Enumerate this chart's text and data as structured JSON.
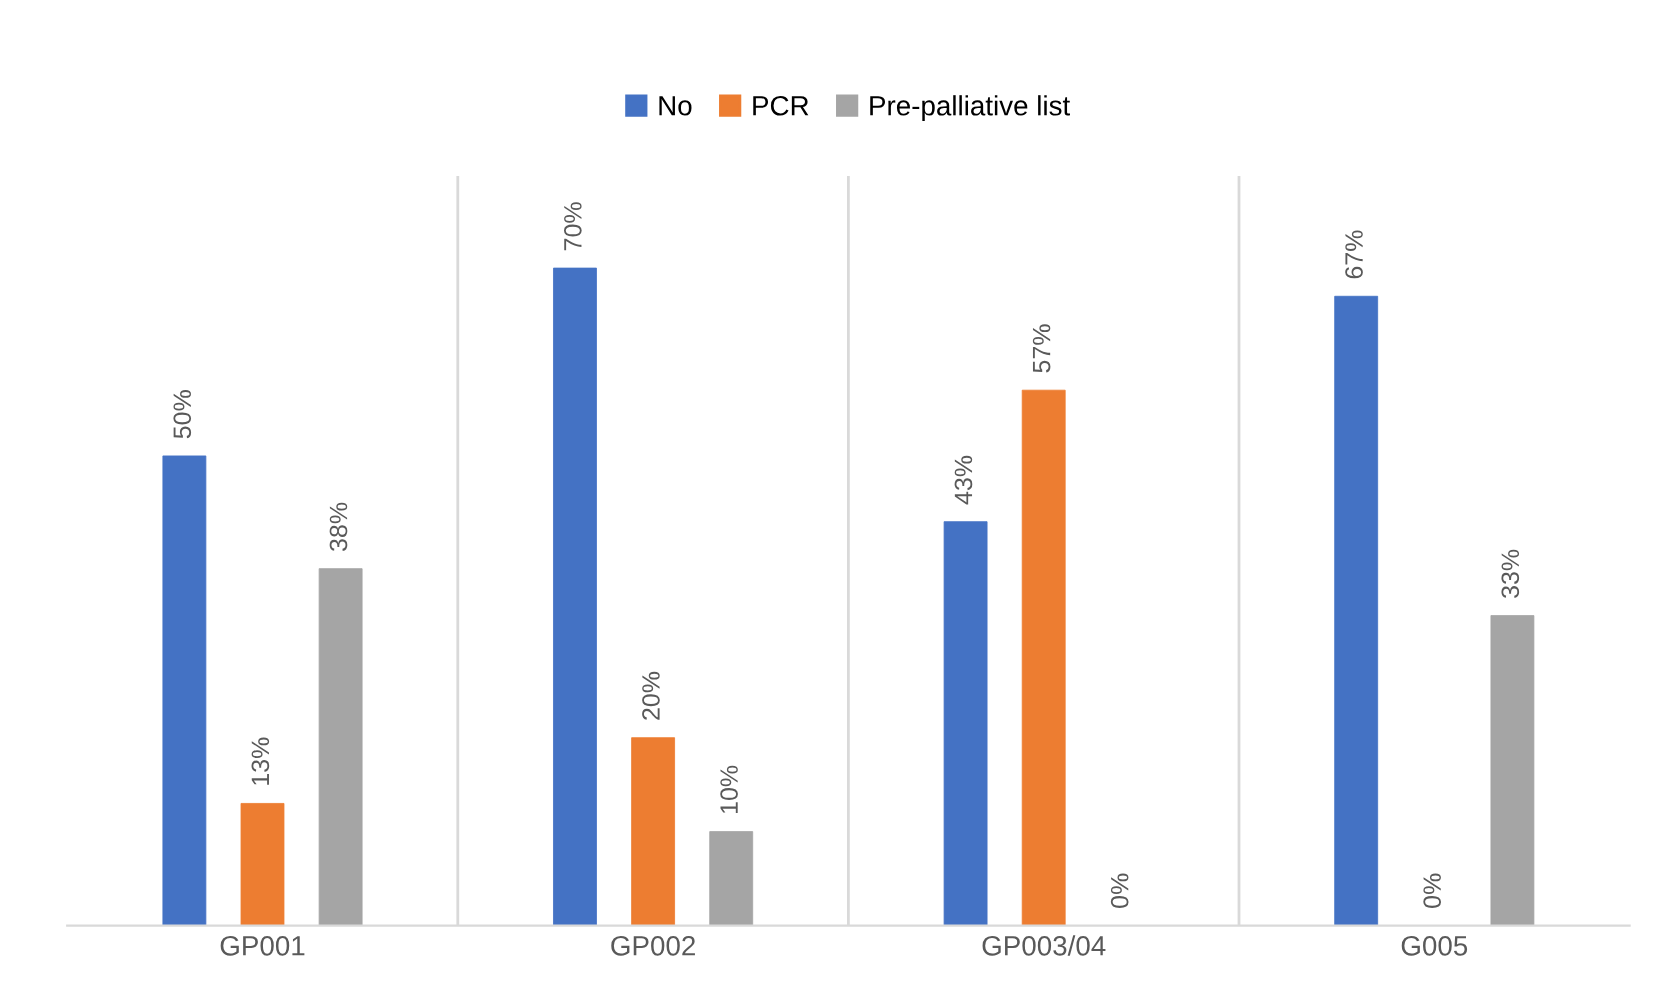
{
  "chart_data": {
    "type": "bar",
    "categories": [
      "GP001",
      "GP002",
      "GP003/04",
      "G005"
    ],
    "series": [
      {
        "name": "No",
        "color": "#4472c4",
        "values": [
          50,
          70,
          43,
          67
        ],
        "value_labels": [
          "50%",
          "70%",
          "43%",
          "67%"
        ]
      },
      {
        "name": "PCR",
        "color": "#ed7d31",
        "values": [
          13,
          20,
          57,
          0
        ],
        "value_labels": [
          "13%",
          "20%",
          "57%",
          "0%"
        ]
      },
      {
        "name": "Pre-palliative list",
        "color": "#a5a5a5",
        "values": [
          38,
          10,
          0,
          33
        ],
        "value_labels": [
          "38%",
          "10%",
          "0%",
          "33%"
        ]
      }
    ],
    "grid": "x",
    "legend": "top"
  }
}
